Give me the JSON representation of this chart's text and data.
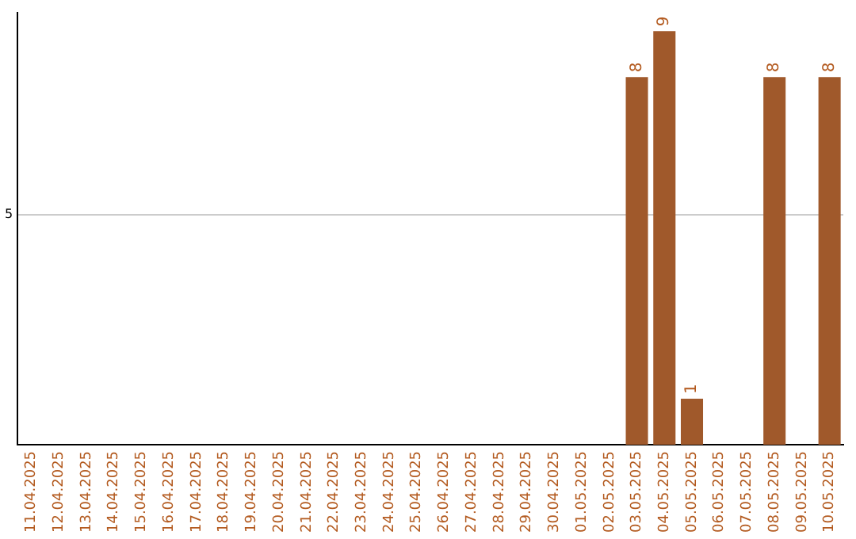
{
  "chart_data": {
    "type": "bar",
    "categories": [
      "11.04.2025",
      "12.04.2025",
      "13.04.2025",
      "14.04.2025",
      "15.04.2025",
      "16.04.2025",
      "17.04.2025",
      "18.04.2025",
      "19.04.2025",
      "20.04.2025",
      "21.04.2025",
      "22.04.2025",
      "23.04.2025",
      "24.04.2025",
      "25.04.2025",
      "26.04.2025",
      "27.04.2025",
      "28.04.2025",
      "29.04.2025",
      "30.04.2025",
      "01.05.2025",
      "02.05.2025",
      "03.05.2025",
      "04.05.2025",
      "05.05.2025",
      "06.05.2025",
      "07.05.2025",
      "08.05.2025",
      "09.05.2025",
      "10.05.2025"
    ],
    "values": [
      null,
      null,
      null,
      null,
      null,
      null,
      null,
      null,
      null,
      null,
      null,
      null,
      null,
      null,
      null,
      null,
      null,
      null,
      null,
      null,
      null,
      null,
      8,
      9,
      1,
      null,
      null,
      8,
      null,
      8
    ],
    "color": "#a0592b",
    "ylim": [
      0,
      9.4
    ],
    "yticks": [
      5
    ],
    "grid": "y",
    "data_labels": true
  }
}
